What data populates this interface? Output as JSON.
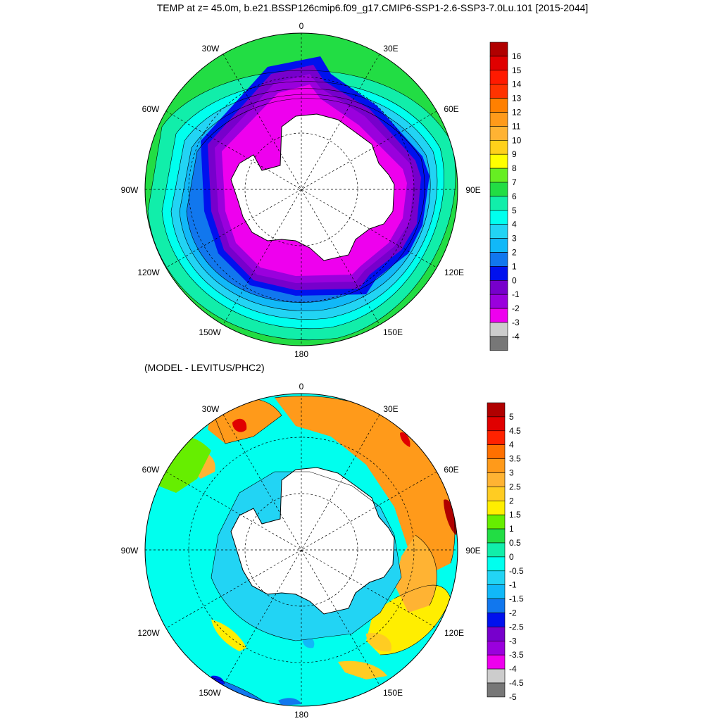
{
  "figure": {
    "title": "TEMP at z=  45.0m, b.e21.BSSP126cmip6.f09_g17.CMIP6-SSP1-2.6-SSP3-7.0Lu.101 [2015-2044]",
    "subtitle": "(MODEL - LEVITUS/PHC2)"
  },
  "map_top": {
    "lon_labels": [
      "0",
      "30E",
      "60E",
      "90E",
      "120E",
      "150E",
      "180",
      "150W",
      "120W",
      "90W",
      "60W",
      "30W"
    ],
    "colorbar": {
      "labels": [
        "16",
        "15",
        "14",
        "13",
        "12",
        "11",
        "10",
        "9",
        "8",
        "7",
        "6",
        "5",
        "4",
        "3",
        "2",
        "1",
        "0",
        "-1",
        "-2",
        "-3",
        "-4"
      ],
      "colors": [
        "#b00000",
        "#e00000",
        "#ff1a00",
        "#ff3300",
        "#ff8000",
        "#ff9a1a",
        "#ffb333",
        "#ffd11a",
        "#ffff00",
        "#66ee22",
        "#22dd44",
        "#11eeaa",
        "#00ffee",
        "#22d4f4",
        "#11b8f8",
        "#1177ee",
        "#0011ee",
        "#7700cc",
        "#9a00dd",
        "#ee00ee",
        "#cccccc",
        "#777777"
      ]
    },
    "chart_data": {
      "type": "heatmap",
      "title": "TEMP at z=  45.0m, b.e21.BSSP126cmip6.f09_g17.CMIP6-SSP1-2.6-SSP3-7.0Lu.101 [2015-2044]",
      "field": "temperature (polar stereographic, south pole)",
      "levels": [
        -4,
        -3,
        -2,
        -1,
        0,
        1,
        2,
        3,
        4,
        5,
        6,
        7,
        8,
        9,
        10,
        11,
        12,
        13,
        14,
        15,
        16
      ],
      "range": [
        -4,
        16
      ]
    }
  },
  "map_bottom": {
    "lon_labels": [
      "0",
      "30E",
      "60E",
      "90E",
      "120E",
      "150E",
      "180",
      "150W",
      "120W",
      "90W",
      "60W",
      "30W"
    ],
    "colorbar": {
      "labels": [
        "5",
        "4.5",
        "4",
        "3.5",
        "3",
        "2.5",
        "2",
        "1.5",
        "1",
        "0.5",
        "0",
        "-0.5",
        "-1",
        "-1.5",
        "-2",
        "-2.5",
        "-3",
        "-3.5",
        "-4",
        "-4.5",
        "-5"
      ],
      "colors": [
        "#b00000",
        "#e00000",
        "#ff2200",
        "#ff7000",
        "#ff9a1a",
        "#ffb333",
        "#ffcc22",
        "#ffee00",
        "#66ee00",
        "#22dd44",
        "#11eeaa",
        "#00ffee",
        "#22d4f4",
        "#11b8f8",
        "#1177ee",
        "#0011ee",
        "#7700cc",
        "#9a00dd",
        "#ee00ee",
        "#cccccc",
        "#777777"
      ]
    },
    "chart_data": {
      "type": "heatmap",
      "title": "(MODEL - LEVITUS/PHC2)",
      "field": "temperature difference (model minus observations)",
      "levels": [
        -5,
        -4.5,
        -4,
        -3.5,
        -3,
        -2.5,
        -2,
        -1.5,
        -1,
        -0.5,
        0,
        0.5,
        1,
        1.5,
        2,
        2.5,
        3,
        3.5,
        4,
        4.5,
        5
      ],
      "range": [
        -5,
        5
      ]
    }
  }
}
